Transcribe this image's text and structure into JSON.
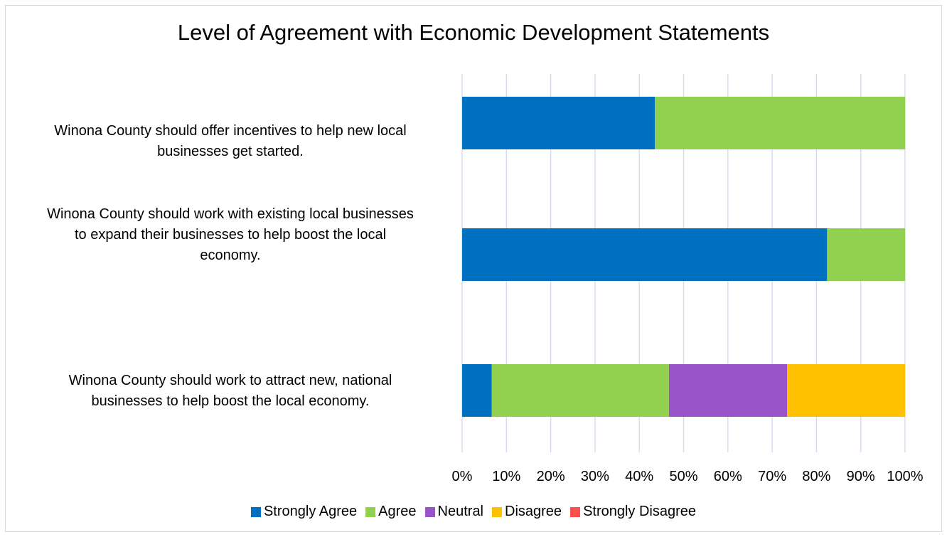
{
  "chart_data": {
    "type": "bar",
    "orientation": "horizontal",
    "stacked": true,
    "title": "Level of Agreement with Economic Development Statements",
    "categories": [
      "Winona County should offer incentives to help new local businesses get started.",
      "Winona County should work with existing local businesses to expand their businesses to help boost the local economy.",
      "Winona County should work to attract new, national businesses to help boost the local economy."
    ],
    "category_lines": [
      [
        "Winona County should offer incentives to help new local",
        "businesses get started."
      ],
      [
        "Winona County should work with existing local businesses",
        "to expand their businesses to help boost the local",
        "economy."
      ],
      [
        "Winona County should work to attract new, national",
        "businesses to help boost the local economy."
      ]
    ],
    "series": [
      {
        "name": "Strongly Agree",
        "color": "#0070C0",
        "values": [
          43.5,
          82.4,
          6.7
        ]
      },
      {
        "name": "Agree",
        "color": "#92D050",
        "values": [
          56.5,
          17.6,
          40.0
        ]
      },
      {
        "name": "Neutral",
        "color": "#9954CC",
        "values": [
          0,
          0,
          26.7
        ]
      },
      {
        "name": "Disagree",
        "color": "#FFC000",
        "values": [
          0,
          0,
          26.6
        ]
      },
      {
        "name": "Strongly Disagree",
        "color": "#FF5050",
        "values": [
          0,
          0,
          0
        ]
      }
    ],
    "xlim": [
      0,
      100
    ],
    "x_ticks": [
      "0%",
      "10%",
      "20%",
      "30%",
      "40%",
      "50%",
      "60%",
      "70%",
      "80%",
      "90%",
      "100%"
    ],
    "grid": true,
    "legend_position": "bottom"
  }
}
